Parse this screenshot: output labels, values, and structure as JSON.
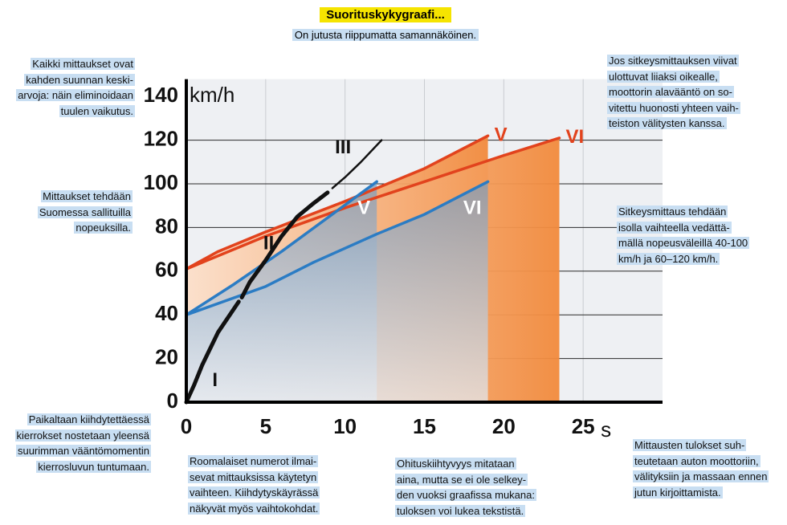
{
  "chart_data": {
    "type": "line",
    "title": "Suorituskykygraafi...",
    "subtitle": "On jutusta riippumatta samannäköinen.",
    "x_unit": "s",
    "y_unit": "km/h",
    "xlim": [
      0,
      30
    ],
    "ylim": [
      0,
      145
    ],
    "xticks": [
      0,
      5,
      10,
      15,
      20,
      25
    ],
    "yticks": [
      0,
      20,
      40,
      60,
      80,
      100,
      120,
      140
    ],
    "grid": true,
    "series": [
      {
        "name": "V",
        "color": "#e2431d",
        "area": true,
        "x": [
          0,
          2,
          5,
          10,
          15,
          19
        ],
        "values": [
          61,
          69,
          78,
          92,
          107,
          122
        ]
      },
      {
        "name": "VI",
        "color": "#e2431d",
        "area": true,
        "x": [
          0,
          5,
          10,
          15,
          20,
          23.5
        ],
        "values": [
          61,
          76,
          89,
          101,
          113,
          121
        ]
      },
      {
        "name": "V",
        "color": "#2b7cc4",
        "area": true,
        "x": [
          0,
          3,
          6,
          9,
          12
        ],
        "values": [
          40,
          54,
          69,
          85,
          101
        ]
      },
      {
        "name": "VI",
        "color": "#2b7cc4",
        "area": true,
        "x": [
          0,
          5,
          8,
          12,
          15,
          19
        ],
        "values": [
          40,
          53,
          64,
          77,
          86,
          101
        ]
      },
      {
        "name": "I",
        "color": "#111111",
        "area": false,
        "x": [
          0,
          0.5,
          1,
          2,
          3.3
        ],
        "values": [
          0,
          8,
          17,
          32,
          46
        ]
      },
      {
        "name": "II",
        "color": "#111111",
        "area": false,
        "x": [
          3.5,
          4,
          5,
          6,
          7,
          8,
          8.9
        ],
        "values": [
          48,
          55,
          65,
          76,
          85,
          91,
          96
        ]
      },
      {
        "name": "III",
        "color": "#111111",
        "area": false,
        "x": [
          9.2,
          10,
          11,
          12.3
        ],
        "values": [
          98,
          103,
          110,
          120
        ]
      }
    ]
  },
  "notes": [
    {
      "align": "right",
      "lines": [
        "Kaikki mittaukset ovat",
        "kahden suunnan keski-",
        "arvoja: näin eliminoidaan",
        "tuulen vaikutus."
      ]
    },
    {
      "align": "right",
      "lines": [
        "Mittaukset tehdään",
        "Suomessa sallituilla",
        "nopeuksilla."
      ]
    },
    {
      "align": "right",
      "lines": [
        "Paikaltaan kiihdytettäessä",
        "kierrokset nostetaan yleensä",
        "suurimman vääntömomentin",
        "kierrosluvun tuntumaan."
      ]
    },
    {
      "align": "left",
      "lines": [
        "Roomalaiset numerot ilmai-",
        "sevat mittauksissa käytetyn",
        "vaihteen. Kiihdytyskäyrässä",
        "näkyvät myös vaihtokohdat."
      ]
    },
    {
      "align": "left",
      "lines": [
        "Ohituskiihtyvyys mitataan",
        "aina, mutta se ei ole selkey-",
        "den vuoksi graafissa mukana:",
        "tuloksen voi lukea tekstistä."
      ]
    },
    {
      "align": "left",
      "lines": [
        "Mittausten tulokset suh-",
        "teutetaan auton moottoriin,",
        "välityksiin ja massaan ennen",
        "jutun kirjoittamista."
      ]
    },
    {
      "align": "left",
      "lines": [
        "Jos sitkeysmittauksen viivat",
        "ulottuvat liiaksi oikealle,",
        "moottorin alavääntö on so-",
        "vitettu huonosti yhteen vaih-",
        "teiston välitysten kanssa."
      ]
    },
    {
      "align": "left",
      "lines": [
        "Sitkeysmittaus tehdään",
        "isolla vaihteella vedättä-",
        "mällä nopeusväleillä 40-100",
        "km/h ja 60–120 km/h."
      ]
    }
  ]
}
